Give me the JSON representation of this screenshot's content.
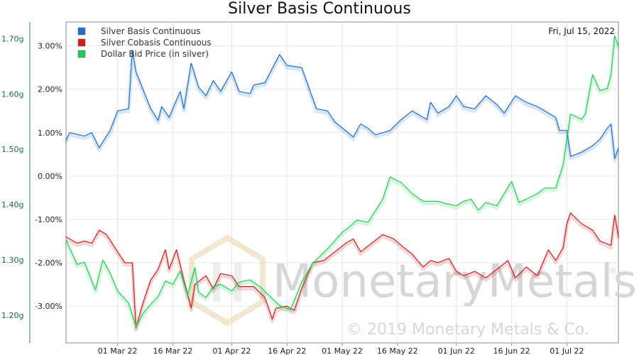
{
  "chart_data": {
    "type": "line",
    "title": "Silver Basis Continuous",
    "date_label": "Fri, Jul 15, 2022",
    "x_labels": [
      "01 Mar 22",
      "16 Mar 22",
      "01 Apr 22",
      "16 Apr 22",
      "01 May 22",
      "16 May 22",
      "01 Jun 22",
      "16 Jun 22",
      "01 Jul 22"
    ],
    "x_start": "15 Feb 22",
    "x_end": "15 Jul 22",
    "right_axis": {
      "ticks": [
        "3.00%",
        "2.00%",
        "1.00%",
        "0.00%",
        "-1.00%",
        "-2.00%",
        "-3.00%"
      ],
      "values": [
        3,
        2,
        1,
        0,
        -1,
        -2,
        -3
      ],
      "ylim": [
        -3.85,
        3.55
      ]
    },
    "left_axis": {
      "ticks": [
        "1.70g",
        "1.60g",
        "1.50g",
        "1.40g",
        "1.30g",
        "1.20g"
      ],
      "values": [
        1.7,
        1.6,
        1.5,
        1.4,
        1.3,
        1.2
      ],
      "ylim": [
        1.15,
        1.73
      ]
    },
    "grid": true,
    "legend_position": "top-left",
    "series": [
      {
        "name": "Silver Basis Continuous",
        "color": "#1f6fc6",
        "axis": "right",
        "points": [
          [
            "15 Feb 22",
            0.82
          ],
          [
            "16 Feb 22",
            1.0
          ],
          [
            "20 Feb 22",
            0.92
          ],
          [
            "22 Feb 22",
            1.0
          ],
          [
            "24 Feb 22",
            0.65
          ],
          [
            "27 Feb 22",
            1.05
          ],
          [
            "01 Mar 22",
            1.5
          ],
          [
            "04 Mar 22",
            1.55
          ],
          [
            "05 Mar 22",
            2.9
          ],
          [
            "06 Mar 22",
            2.4
          ],
          [
            "10 Mar 22",
            1.55
          ],
          [
            "12 Mar 22",
            1.28
          ],
          [
            "13 Mar 22",
            1.6
          ],
          [
            "15 Mar 22",
            1.35
          ],
          [
            "18 Mar 22",
            1.95
          ],
          [
            "19 Mar 22",
            1.55
          ],
          [
            "21 Mar 22",
            2.6
          ],
          [
            "23 Mar 22",
            2.05
          ],
          [
            "25 Mar 22",
            1.85
          ],
          [
            "27 Mar 22",
            2.2
          ],
          [
            "29 Mar 22",
            1.95
          ],
          [
            "01 Apr 22",
            2.4
          ],
          [
            "03 Apr 22",
            1.95
          ],
          [
            "06 Apr 22",
            1.9
          ],
          [
            "07 Apr 22",
            2.1
          ],
          [
            "10 Apr 22",
            2.15
          ],
          [
            "14 Apr 22",
            2.8
          ],
          [
            "16 Apr 22",
            2.55
          ],
          [
            "20 Apr 22",
            2.5
          ],
          [
            "24 Apr 22",
            1.55
          ],
          [
            "27 Apr 22",
            1.5
          ],
          [
            "29 Apr 22",
            1.25
          ],
          [
            "04 May 22",
            0.9
          ],
          [
            "06 May 22",
            1.2
          ],
          [
            "08 May 22",
            1.1
          ],
          [
            "10 May 22",
            0.95
          ],
          [
            "12 May 22",
            1.0
          ],
          [
            "14 May 22",
            1.05
          ],
          [
            "17 May 22",
            1.3
          ],
          [
            "20 May 22",
            1.5
          ],
          [
            "24 May 22",
            1.3
          ],
          [
            "25 May 22",
            1.7
          ],
          [
            "27 May 22",
            1.45
          ],
          [
            "30 May 22",
            1.6
          ],
          [
            "01 Jun 22",
            1.85
          ],
          [
            "03 Jun 22",
            1.6
          ],
          [
            "06 Jun 22",
            1.55
          ],
          [
            "09 Jun 22",
            1.85
          ],
          [
            "12 Jun 22",
            1.65
          ],
          [
            "14 Jun 22",
            1.45
          ],
          [
            "17 Jun 22",
            1.85
          ],
          [
            "20 Jun 22",
            1.7
          ],
          [
            "23 Jun 22",
            1.6
          ],
          [
            "26 Jun 22",
            1.45
          ],
          [
            "28 Jun 22",
            1.35
          ],
          [
            "29 Jun 22",
            1.05
          ],
          [
            "01 Jul 22",
            1.05
          ],
          [
            "02 Jul 22",
            0.45
          ],
          [
            "05 Jul 22",
            0.55
          ],
          [
            "08 Jul 22",
            0.7
          ],
          [
            "10 Jul 22",
            0.85
          ],
          [
            "12 Jul 22",
            1.1
          ],
          [
            "13 Jul 22",
            1.2
          ],
          [
            "14 Jul 22",
            0.4
          ],
          [
            "15 Jul 22",
            0.65
          ]
        ]
      },
      {
        "name": "Silver Cobasis Continuous",
        "color": "#cc1f1f",
        "axis": "right",
        "points": [
          [
            "15 Feb 22",
            -1.4
          ],
          [
            "18 Feb 22",
            -1.55
          ],
          [
            "20 Feb 22",
            -1.5
          ],
          [
            "22 Feb 22",
            -1.55
          ],
          [
            "24 Feb 22",
            -1.25
          ],
          [
            "26 Feb 22",
            -1.35
          ],
          [
            "01 Mar 22",
            -1.75
          ],
          [
            "03 Mar 22",
            -2.0
          ],
          [
            "05 Mar 22",
            -2.0
          ],
          [
            "06 Mar 22",
            -3.5
          ],
          [
            "08 Mar 22",
            -2.9
          ],
          [
            "10 Mar 22",
            -2.4
          ],
          [
            "12 Mar 22",
            -2.15
          ],
          [
            "14 Mar 22",
            -1.7
          ],
          [
            "15 Mar 22",
            -2.15
          ],
          [
            "17 Mar 22",
            -1.7
          ],
          [
            "19 Mar 22",
            -2.4
          ],
          [
            "21 Mar 22",
            -3.05
          ],
          [
            "22 Mar 22",
            -2.5
          ],
          [
            "25 Mar 22",
            -2.3
          ],
          [
            "27 Mar 22",
            -2.6
          ],
          [
            "29 Mar 22",
            -2.25
          ],
          [
            "01 Apr 22",
            -2.3
          ],
          [
            "03 Apr 22",
            -2.55
          ],
          [
            "07 Apr 22",
            -2.55
          ],
          [
            "10 Apr 22",
            -2.8
          ],
          [
            "12 Apr 22",
            -3.3
          ],
          [
            "13 Apr 22",
            -3.05
          ],
          [
            "16 Apr 22",
            -3.0
          ],
          [
            "18 Apr 22",
            -3.1
          ],
          [
            "20 Apr 22",
            -2.6
          ],
          [
            "23 Apr 22",
            -2.0
          ],
          [
            "26 Apr 22",
            -1.95
          ],
          [
            "29 Apr 22",
            -1.75
          ],
          [
            "02 May 22",
            -1.55
          ],
          [
            "04 May 22",
            -1.45
          ],
          [
            "06 May 22",
            -1.75
          ],
          [
            "09 May 22",
            -1.55
          ],
          [
            "12 May 22",
            -1.35
          ],
          [
            "15 May 22",
            -1.45
          ],
          [
            "17 May 22",
            -1.6
          ],
          [
            "20 May 22",
            -1.8
          ],
          [
            "23 May 22",
            -2.1
          ],
          [
            "25 May 22",
            -1.95
          ],
          [
            "27 May 22",
            -2.0
          ],
          [
            "30 May 22",
            -1.9
          ],
          [
            "01 Jun 22",
            -2.2
          ],
          [
            "03 Jun 22",
            -2.3
          ],
          [
            "06 Jun 22",
            -2.2
          ],
          [
            "09 Jun 22",
            -2.35
          ],
          [
            "12 Jun 22",
            -2.15
          ],
          [
            "15 Jun 22",
            -1.95
          ],
          [
            "17 Jun 22",
            -2.35
          ],
          [
            "20 Jun 22",
            -2.1
          ],
          [
            "23 Jun 22",
            -2.3
          ],
          [
            "26 Jun 22",
            -1.7
          ],
          [
            "28 Jun 22",
            -1.95
          ],
          [
            "30 Jun 22",
            -1.65
          ],
          [
            "01 Jul 22",
            -1.1
          ],
          [
            "02 Jul 22",
            -0.85
          ],
          [
            "05 Jul 22",
            -1.1
          ],
          [
            "08 Jul 22",
            -1.25
          ],
          [
            "10 Jul 22",
            -1.5
          ],
          [
            "13 Jul 22",
            -1.6
          ],
          [
            "14 Jul 22",
            -0.9
          ],
          [
            "15 Jul 22",
            -1.4
          ]
        ]
      },
      {
        "name": "Dollar Bid Price (in silver)",
        "color": "#22cc55",
        "axis": "left",
        "points": [
          [
            "15 Feb 22",
            1.336
          ],
          [
            "18 Feb 22",
            1.292
          ],
          [
            "20 Feb 22",
            1.296
          ],
          [
            "23 Feb 22",
            1.246
          ],
          [
            "25 Feb 22",
            1.3
          ],
          [
            "27 Feb 22",
            1.276
          ],
          [
            "01 Mar 22",
            1.244
          ],
          [
            "04 Mar 22",
            1.222
          ],
          [
            "06 Mar 22",
            1.18
          ],
          [
            "08 Mar 22",
            1.204
          ],
          [
            "10 Mar 22",
            1.22
          ],
          [
            "12 Mar 22",
            1.234
          ],
          [
            "14 Mar 22",
            1.262
          ],
          [
            "16 Mar 22",
            1.256
          ],
          [
            "18 Mar 22",
            1.28
          ],
          [
            "20 Mar 22",
            1.236
          ],
          [
            "22 Mar 22",
            1.286
          ],
          [
            "23 Mar 22",
            1.242
          ],
          [
            "25 Mar 22",
            1.232
          ],
          [
            "27 Mar 22",
            1.252
          ],
          [
            "29 Mar 22",
            1.256
          ],
          [
            "01 Apr 22",
            1.244
          ],
          [
            "03 Apr 22",
            1.26
          ],
          [
            "06 Apr 22",
            1.264
          ],
          [
            "09 Apr 22",
            1.25
          ],
          [
            "12 Apr 22",
            1.23
          ],
          [
            "14 Apr 22",
            1.218
          ],
          [
            "17 Apr 22",
            1.21
          ],
          [
            "20 Apr 22",
            1.26
          ],
          [
            "23 Apr 22",
            1.294
          ],
          [
            "27 Apr 22",
            1.32
          ],
          [
            "01 May 22",
            1.35
          ],
          [
            "03 May 22",
            1.36
          ],
          [
            "05 May 22",
            1.372
          ],
          [
            "08 May 22",
            1.368
          ],
          [
            "12 May 22",
            1.41
          ],
          [
            "14 May 22",
            1.45
          ],
          [
            "17 May 22",
            1.44
          ],
          [
            "20 May 22",
            1.42
          ],
          [
            "23 May 22",
            1.406
          ],
          [
            "27 May 22",
            1.406
          ],
          [
            "29 May 22",
            1.402
          ],
          [
            "01 Jun 22",
            1.398
          ],
          [
            "03 Jun 22",
            1.406
          ],
          [
            "05 Jun 22",
            1.41
          ],
          [
            "07 Jun 22",
            1.39
          ],
          [
            "09 Jun 22",
            1.404
          ],
          [
            "12 Jun 22",
            1.398
          ],
          [
            "14 Jun 22",
            1.42
          ],
          [
            "16 Jun 22",
            1.442
          ],
          [
            "18 Jun 22",
            1.404
          ],
          [
            "20 Jun 22",
            1.41
          ],
          [
            "23 Jun 22",
            1.42
          ],
          [
            "25 Jun 22",
            1.43
          ],
          [
            "28 Jun 22",
            1.43
          ],
          [
            "30 Jun 22",
            1.472
          ],
          [
            "02 Jul 22",
            1.564
          ],
          [
            "05 Jul 22",
            1.554
          ],
          [
            "06 Jul 22",
            1.564
          ],
          [
            "08 Jul 22",
            1.635
          ],
          [
            "10 Jul 22",
            1.606
          ],
          [
            "12 Jul 22",
            1.61
          ],
          [
            "13 Jul 22",
            1.635
          ],
          [
            "14 Jul 22",
            1.705
          ],
          [
            "15 Jul 22",
            1.685
          ]
        ]
      }
    ]
  },
  "watermark": {
    "brand": "MonetaryMetals",
    "registered": "®",
    "copyright": "© 2019 Monetary Metals & Co."
  }
}
